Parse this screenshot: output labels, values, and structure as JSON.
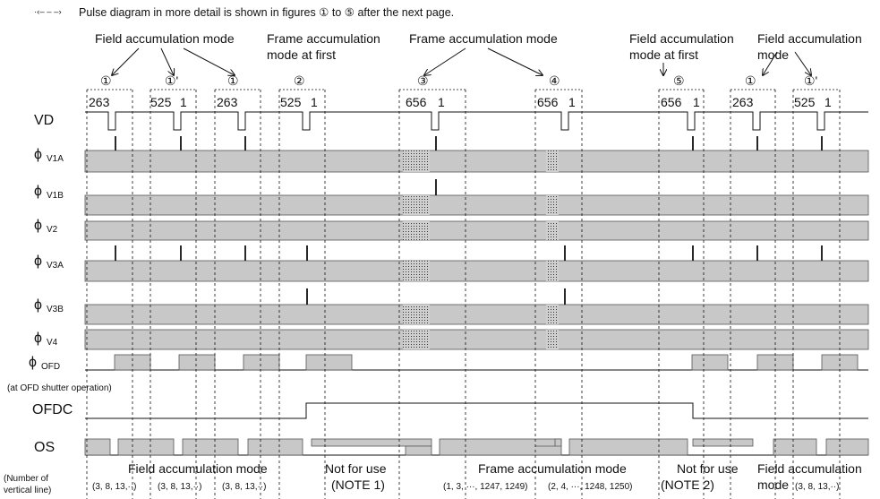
{
  "header": {
    "note": "Pulse diagram in more detail is shown in figures ① to ⑤ after the next page."
  },
  "top_labels": {
    "field_acc_1": "Field accumulation mode",
    "frame_first_1": "Frame accumulation",
    "frame_first_2": "mode at first",
    "frame_acc": "Frame accumulation mode",
    "field_first_1": "Field accumulation",
    "field_first_2": "mode at first",
    "field_acc_2a": "Field accumulation",
    "field_acc_2b": "mode"
  },
  "figure_marks": {
    "m1a": "①",
    "m1b": "①'",
    "m1c": "①",
    "m2": "②",
    "m3": "③",
    "m4": "④",
    "m5": "⑤",
    "m1d": "①",
    "m1e": "①'"
  },
  "line_counts": {
    "c1": "263",
    "c2a": "525",
    "c2b": "1",
    "c3": "263",
    "c4a": "525",
    "c4b": "1",
    "c5a": "656",
    "c5b": "1",
    "c6a": "656",
    "c6b": "1",
    "c7a": "656",
    "c7b": "1",
    "c8": "263",
    "c9a": "525",
    "c9b": "1"
  },
  "signals": {
    "vd": "VD",
    "v1a_sym": "ϕ",
    "v1a_sub": "V1A",
    "v1b_sym": "ϕ",
    "v1b_sub": "V1B",
    "v2_sym": "ϕ",
    "v2_sub": "V2",
    "v3a_sym": "ϕ",
    "v3a_sub": "V3A",
    "v3b_sym": "ϕ",
    "v3b_sub": "V3B",
    "v4_sym": "ϕ",
    "v4_sub": "V4",
    "ofd_sym": "ϕ",
    "ofd_sub": "OFD",
    "ofd_note": "(at OFD shutter operation)",
    "ofdc": "OFDC",
    "os": "OS"
  },
  "bottom": {
    "num_label_1": "(Number of",
    "num_label_2": "vertical line)",
    "field_mode": "Field accumulation mode",
    "field_seq_1": "(3, 8, 13,··)",
    "field_seq_2": "(3, 8, 13,··)",
    "field_seq_3": "(3, 8, 13,··)",
    "nfu_1": "Not for use",
    "note1": "(NOTE 1)",
    "frame_mode": "Frame accumulation mode",
    "frame_seq_1": "(1, 3, ···, 1247, 1249)",
    "frame_seq_2": "(2, 4, ···, 1248, 1250)",
    "nfu_2": "Not for use",
    "note2": "(NOTE 2)",
    "field_mode_2": "Field accumulation",
    "field_mode_2b": "mode",
    "field_seq_4": "(3, 8, 13,··)"
  }
}
